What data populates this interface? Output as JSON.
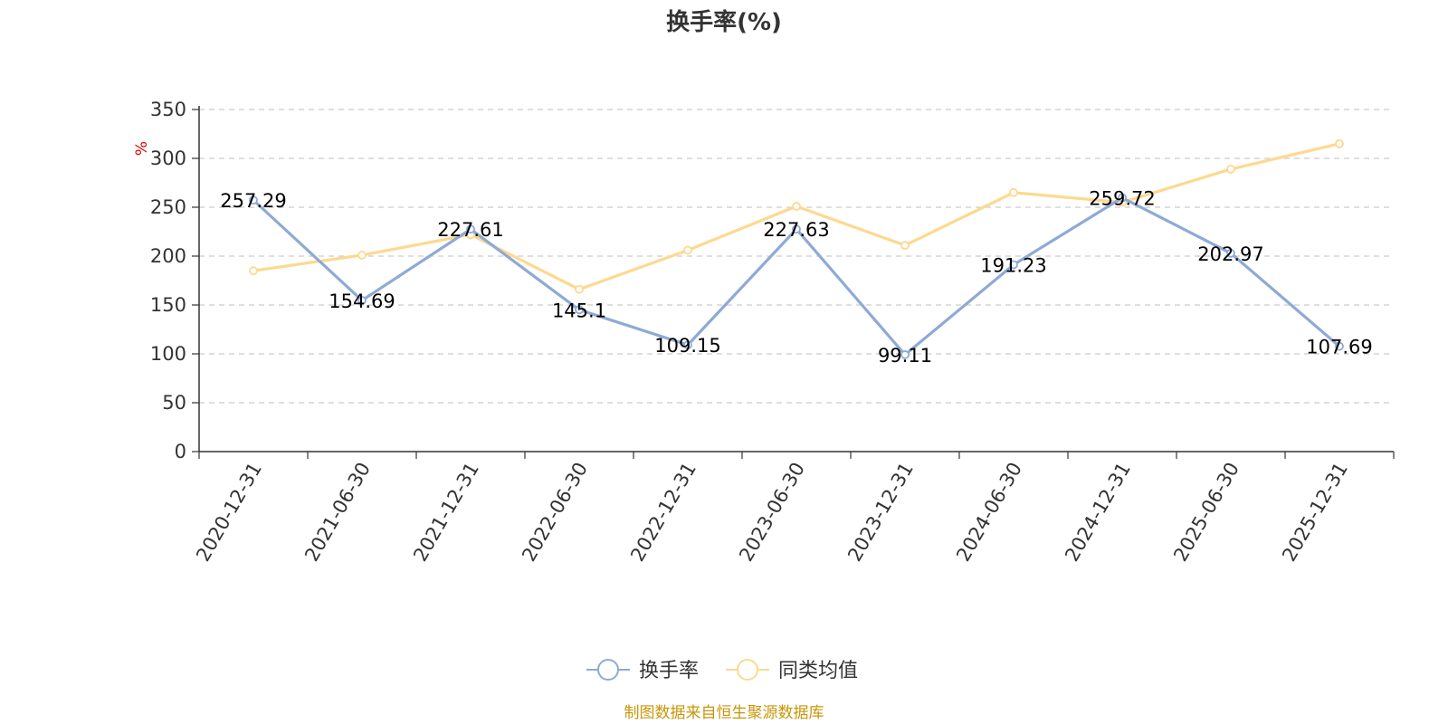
{
  "chart_data": {
    "type": "line",
    "title": "换手率(%)",
    "ylabel": "%",
    "ylim": [
      0,
      350
    ],
    "yticks": [
      0,
      50,
      100,
      150,
      200,
      250,
      300,
      350
    ],
    "categories": [
      "2020-12-31",
      "2021-06-30",
      "2021-12-31",
      "2022-06-30",
      "2022-12-31",
      "2023-06-30",
      "2023-12-31",
      "2024-06-30",
      "2024-12-31",
      "2025-06-30",
      "2025-12-31"
    ],
    "series": [
      {
        "name": "换手率",
        "color": "#8eaad6",
        "values": [
          257.29,
          154.69,
          227.61,
          145.1,
          109.15,
          227.63,
          99.11,
          191.23,
          259.72,
          202.97,
          107.69
        ],
        "labels": [
          "257.29",
          "154.69",
          "227.61",
          "145.1",
          "109.15",
          "227.63",
          "99.11",
          "191.23",
          "259.72",
          "202.97",
          "107.69"
        ]
      },
      {
        "name": "同类均值",
        "color": "#fdd98f",
        "values": [
          185,
          201,
          222,
          166,
          206,
          251,
          211,
          265,
          255,
          289,
          315
        ]
      }
    ],
    "grid": true,
    "legend_position": "bottom-center",
    "source_note": "制图数据来自恒生聚源数据库"
  }
}
